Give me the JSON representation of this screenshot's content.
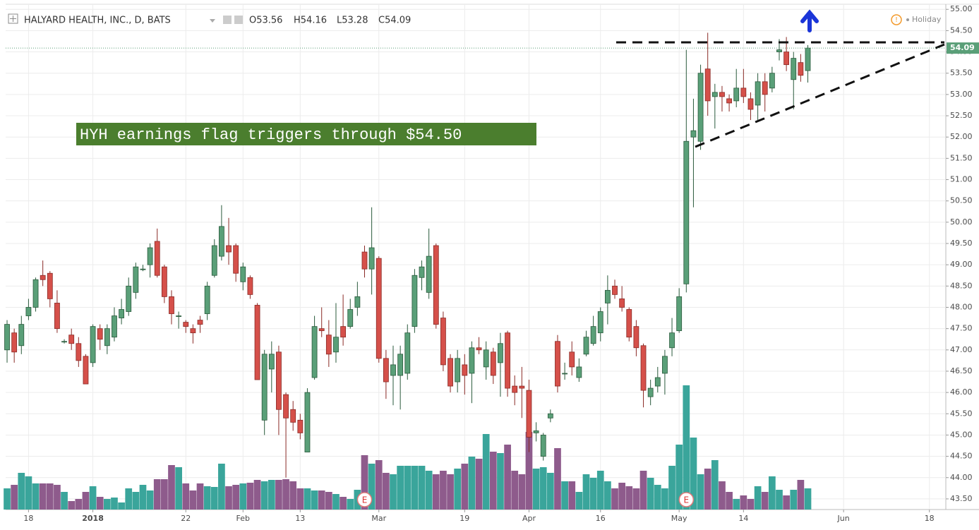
{
  "chart_data": {
    "type": "candlestick",
    "title": "HALYARD HEALTH, INC., D, BATS",
    "ohlc_legend": [
      "O53.56",
      "H54.16",
      "L53.28",
      "C54.09"
    ],
    "status": "Holiday",
    "annotation": "HYH earnings flag triggers through $54.50",
    "last_price": 54.09,
    "x": [
      0,
      1,
      2,
      3,
      4,
      5,
      6,
      7,
      8,
      9,
      10,
      11,
      12,
      13,
      14,
      15,
      16,
      17,
      18,
      19,
      20,
      21,
      22,
      23,
      24,
      25,
      26,
      27,
      28,
      29,
      30,
      31,
      32,
      33,
      34,
      35,
      36,
      37,
      38,
      39,
      40,
      41,
      42,
      43,
      44,
      45,
      46,
      47,
      48,
      49,
      50,
      51,
      52,
      53,
      54,
      55,
      56,
      57,
      58,
      59,
      60,
      61,
      62,
      63,
      64,
      65,
      66,
      67,
      68,
      69,
      70,
      71,
      72,
      73,
      74,
      75,
      76,
      77,
      78,
      79,
      80,
      81,
      82,
      83,
      84,
      85,
      86,
      87,
      88,
      89,
      90,
      91,
      92,
      93,
      94,
      95,
      96,
      97,
      98,
      99,
      100,
      101,
      102,
      103,
      104,
      105,
      106,
      107,
      108,
      109,
      110,
      111,
      112
    ],
    "open": [
      47.0,
      47.4,
      47.1,
      47.8,
      48.0,
      48.75,
      48.8,
      48.1,
      47.2,
      47.35,
      47.15,
      46.85,
      46.7,
      47.5,
      47.1,
      47.3,
      47.75,
      47.9,
      48.35,
      48.9,
      49.0,
      49.55,
      48.95,
      48.25,
      47.8,
      47.65,
      47.5,
      47.7,
      47.85,
      48.75,
      49.2,
      49.45,
      49.45,
      48.6,
      48.7,
      48.05,
      45.35,
      46.55,
      46.95,
      45.95,
      45.6,
      45.35,
      44.6,
      46.35,
      47.5,
      47.35,
      46.95,
      47.55,
      47.55,
      48.0,
      49.3,
      48.9,
      49.15,
      46.8,
      46.4,
      46.4,
      46.45,
      47.55,
      48.7,
      48.35,
      49.45,
      47.75,
      46.8,
      46.25,
      46.65,
      46.45,
      47.05,
      46.6,
      46.95,
      46.7,
      47.4,
      46.15,
      46.15,
      46.05,
      45.05,
      44.5,
      45.4,
      47.2,
      46.45,
      46.95,
      46.35,
      46.9,
      47.15,
      47.4,
      48.1,
      48.5,
      48.2,
      47.95,
      47.55,
      47.1,
      45.9,
      46.15,
      46.45,
      47.05,
      47.45,
      48.55,
      52.0,
      51.9,
      53.6,
      52.95,
      53.05,
      52.9,
      52.85,
      53.15,
      52.9,
      52.75,
      53.3,
      53.15,
      54.0,
      54.0,
      53.35,
      53.75,
      53.56
    ],
    "high": [
      47.7,
      47.5,
      47.8,
      48.2,
      48.7,
      49.1,
      48.85,
      48.4,
      47.25,
      47.5,
      47.3,
      46.9,
      47.6,
      47.6,
      47.6,
      48.0,
      48.2,
      48.7,
      49.05,
      49.0,
      49.5,
      49.85,
      49.0,
      48.4,
      47.9,
      47.7,
      47.6,
      47.8,
      48.6,
      49.6,
      50.4,
      50.1,
      49.5,
      49.05,
      48.75,
      48.1,
      47.0,
      47.2,
      47.1,
      46.0,
      45.8,
      45.5,
      46.1,
      47.8,
      48.0,
      47.7,
      48.1,
      48.3,
      48.2,
      48.6,
      49.45,
      50.35,
      49.2,
      47.0,
      47.1,
      47.1,
      47.6,
      48.9,
      49.1,
      49.85,
      49.5,
      47.9,
      46.9,
      47.0,
      46.9,
      47.2,
      47.3,
      47.2,
      47.05,
      47.4,
      47.45,
      46.4,
      46.6,
      46.3,
      45.3,
      45.05,
      45.6,
      47.35,
      46.7,
      47.2,
      46.8,
      47.45,
      47.8,
      48.0,
      48.75,
      48.65,
      48.5,
      48.0,
      47.7,
      47.15,
      46.3,
      46.6,
      47.0,
      47.75,
      48.45,
      54.05,
      52.9,
      53.7,
      54.45,
      53.25,
      53.2,
      53.0,
      53.6,
      53.6,
      53.05,
      53.5,
      53.5,
      53.65,
      54.3,
      54.35,
      54.0,
      53.95,
      54.16
    ],
    "low": [
      46.7,
      46.7,
      46.9,
      47.7,
      47.9,
      48.5,
      48.0,
      47.4,
      47.15,
      47.0,
      46.6,
      46.2,
      46.6,
      47.0,
      46.9,
      47.2,
      47.6,
      47.8,
      48.2,
      48.85,
      48.7,
      48.7,
      48.1,
      47.6,
      47.5,
      47.4,
      47.15,
      47.4,
      47.7,
      48.7,
      49.1,
      49.0,
      48.6,
      48.4,
      48.2,
      46.3,
      45.0,
      46.0,
      45.0,
      44.0,
      45.1,
      44.9,
      44.6,
      46.3,
      47.3,
      46.6,
      46.7,
      47.1,
      47.5,
      47.8,
      48.7,
      48.3,
      46.7,
      45.85,
      45.7,
      45.6,
      46.3,
      47.4,
      48.4,
      48.2,
      47.5,
      46.5,
      46.0,
      46.0,
      45.95,
      45.75,
      46.9,
      46.3,
      46.2,
      45.9,
      45.9,
      45.7,
      45.4,
      44.6,
      44.85,
      44.4,
      45.3,
      46.0,
      46.3,
      46.4,
      46.25,
      46.85,
      47.1,
      47.2,
      47.6,
      48.2,
      47.9,
      47.2,
      46.85,
      45.65,
      45.7,
      46.0,
      45.95,
      46.85,
      47.4,
      48.35,
      50.35,
      51.7,
      52.5,
      52.2,
      52.6,
      52.6,
      52.7,
      52.8,
      52.4,
      52.4,
      52.6,
      53.05,
      53.8,
      53.55,
      52.65,
      53.3,
      53.28
    ],
    "close": [
      47.6,
      46.95,
      47.6,
      48.0,
      48.65,
      48.65,
      48.2,
      47.5,
      47.2,
      47.15,
      46.75,
      46.2,
      47.55,
      47.25,
      47.5,
      47.8,
      47.95,
      48.5,
      48.95,
      48.9,
      49.4,
      48.75,
      48.25,
      47.85,
      47.8,
      47.55,
      47.4,
      47.6,
      48.5,
      49.45,
      49.9,
      49.3,
      48.8,
      48.95,
      48.3,
      46.3,
      46.9,
      46.9,
      45.6,
      45.4,
      45.3,
      45.05,
      46.0,
      47.55,
      47.45,
      46.9,
      47.3,
      47.3,
      47.95,
      48.25,
      48.9,
      49.4,
      46.8,
      46.25,
      46.65,
      46.9,
      47.4,
      48.75,
      48.95,
      49.2,
      47.6,
      46.65,
      46.15,
      46.8,
      46.4,
      47.05,
      47.0,
      47.0,
      46.4,
      47.15,
      46.1,
      46.0,
      46.1,
      44.95,
      45.1,
      45.0,
      45.5,
      46.15,
      46.45,
      46.6,
      46.6,
      47.3,
      47.55,
      47.9,
      48.4,
      48.3,
      48.0,
      47.3,
      47.05,
      46.05,
      46.1,
      46.35,
      46.85,
      47.4,
      48.25,
      51.9,
      52.15,
      53.5,
      52.85,
      53.05,
      52.95,
      52.8,
      53.15,
      52.95,
      52.65,
      53.3,
      53.0,
      53.5,
      54.05,
      53.7,
      53.85,
      53.45,
      54.09
    ],
    "volume": [
      300,
      350,
      520,
      470,
      370,
      370,
      370,
      350,
      250,
      120,
      150,
      250,
      330,
      180,
      150,
      170,
      100,
      300,
      250,
      350,
      270,
      430,
      430,
      630,
      600,
      370,
      270,
      370,
      330,
      320,
      650,
      330,
      350,
      370,
      380,
      420,
      400,
      420,
      420,
      430,
      400,
      300,
      300,
      270,
      270,
      250,
      220,
      180,
      150,
      280,
      770,
      650,
      700,
      520,
      500,
      620,
      620,
      620,
      620,
      550,
      500,
      550,
      500,
      580,
      650,
      750,
      720,
      1070,
      820,
      800,
      920,
      550,
      500,
      1100,
      580,
      600,
      520,
      870,
      400,
      400,
      250,
      500,
      450,
      550,
      400,
      300,
      380,
      330,
      300,
      550,
      450,
      350,
      300,
      620,
      920,
      1760,
      1020,
      500,
      580,
      700,
      400,
      250,
      150,
      200,
      150,
      330,
      250,
      470,
      280,
      200,
      280,
      420,
      300
    ],
    "volume_lim": [
      0,
      2000
    ],
    "earnings_markers": [
      {
        "x": 50,
        "label": "E"
      },
      {
        "x": 95,
        "label": "E"
      }
    ],
    "xlim": [
      -0.2,
      131.3
    ],
    "ylim": [
      43.25,
      55.12
    ],
    "xticks": [
      {
        "value": 3,
        "label": "18"
      },
      {
        "value": 12,
        "label": "2018"
      },
      {
        "value": 25,
        "label": "22"
      },
      {
        "value": 33,
        "label": "Feb"
      },
      {
        "value": 41,
        "label": "13"
      },
      {
        "value": 52,
        "label": "Mar"
      },
      {
        "value": 64,
        "label": "19"
      },
      {
        "value": 73,
        "label": "Apr"
      },
      {
        "value": 83,
        "label": "16"
      },
      {
        "value": 94,
        "label": "May"
      },
      {
        "value": 103,
        "label": "14"
      },
      {
        "value": 117,
        "label": "Jun"
      },
      {
        "value": 129,
        "label": "18"
      }
    ],
    "yticks": [
      {
        "value": 43.5,
        "label": "43.50"
      },
      {
        "value": 44,
        "label": "44.00"
      },
      {
        "value": 44.5,
        "label": "44.50"
      },
      {
        "value": 45,
        "label": "45.00"
      },
      {
        "value": 45.5,
        "label": "45.50"
      },
      {
        "value": 46,
        "label": "46.00"
      },
      {
        "value": 46.5,
        "label": "46.50"
      },
      {
        "value": 47,
        "label": "47.00"
      },
      {
        "value": 47.5,
        "label": "47.50"
      },
      {
        "value": 48,
        "label": "48.00"
      },
      {
        "value": 48.5,
        "label": "48.50"
      },
      {
        "value": 49,
        "label": "49.00"
      },
      {
        "value": 49.5,
        "label": "49.50"
      },
      {
        "value": 50,
        "label": "50.00"
      },
      {
        "value": 50.5,
        "label": "50.50"
      },
      {
        "value": 51,
        "label": "51.00"
      },
      {
        "value": 51.5,
        "label": "51.50"
      },
      {
        "value": 52,
        "label": "52.00"
      },
      {
        "value": 52.5,
        "label": "52.50"
      },
      {
        "value": 53,
        "label": "53.00"
      },
      {
        "value": 53.5,
        "label": "53.50"
      },
      {
        "value": 54,
        "label": "54.00"
      },
      {
        "value": 54.5,
        "label": "54.50"
      },
      {
        "value": 55,
        "label": "55.00"
      }
    ],
    "grid": true,
    "colors": {
      "up": "#5a9f78",
      "down": "#d5504a",
      "up_border": "#2a5a3c",
      "down_border": "#8a2a26",
      "volume_up": "#3aa59b",
      "volume_down": "#8e5b8c",
      "last_price": "#5a9f78",
      "annotation": "#4b7e2e"
    }
  }
}
